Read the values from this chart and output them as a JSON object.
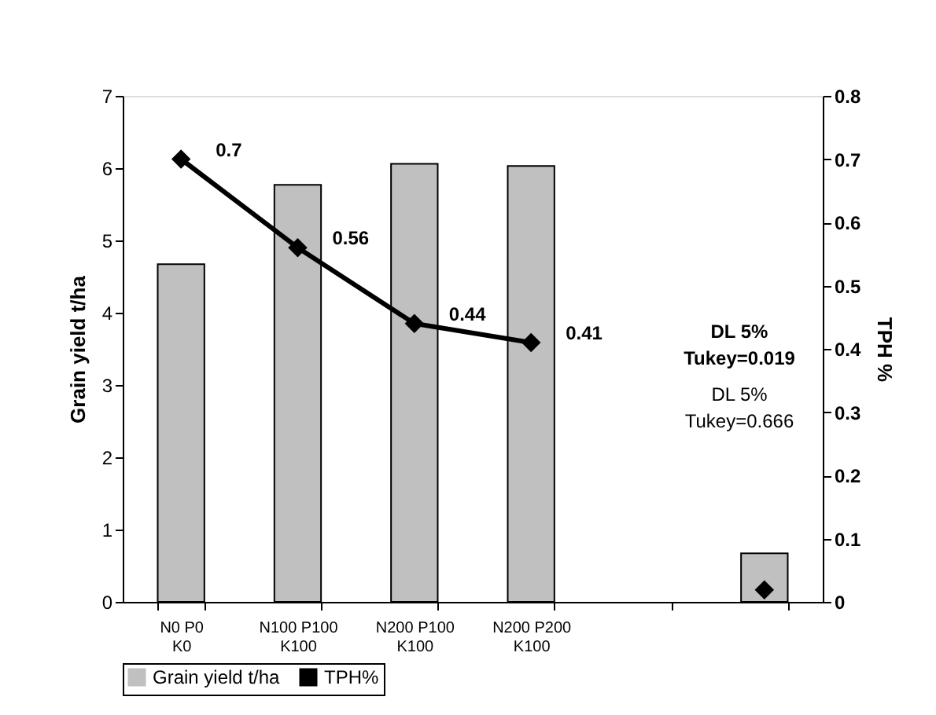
{
  "chart_data": {
    "type": "bar",
    "categories": [
      "N0 P0 K0",
      "N100 P100 K100",
      "N200 P100 K100",
      "N200 P200 K100",
      null,
      null
    ],
    "ylabel": "Grain yield t/ha",
    "y2label": "TPH %",
    "ylim": [
      0,
      7
    ],
    "yticks": [
      0,
      1,
      2,
      3,
      4,
      5,
      6,
      7
    ],
    "y2lim": [
      0,
      0.8
    ],
    "y2ticks": [
      0,
      0.1,
      0.2,
      0.3,
      0.4,
      0.5,
      0.6,
      0.7,
      0.8
    ],
    "series": [
      {
        "name": "Grain yield t/ha",
        "color": "#c0c0c0",
        "values": [
          4.67,
          5.77,
          6.06,
          6.03,
          null,
          0.67
        ]
      },
      {
        "name": "TPH%",
        "type": "line",
        "axis": "y2",
        "color": "#000000",
        "marker": "diamond",
        "values": [
          0.7,
          0.56,
          0.44,
          0.41,
          null,
          0.019
        ],
        "value_labels": [
          "0.7",
          "0.56",
          "0.44",
          "0.41",
          null,
          null
        ]
      }
    ],
    "annotations": [
      "DL 5%\nTukey=0.019",
      "DL 5%\nTukey=0.666"
    ],
    "grid": false,
    "legend": "bottom"
  }
}
